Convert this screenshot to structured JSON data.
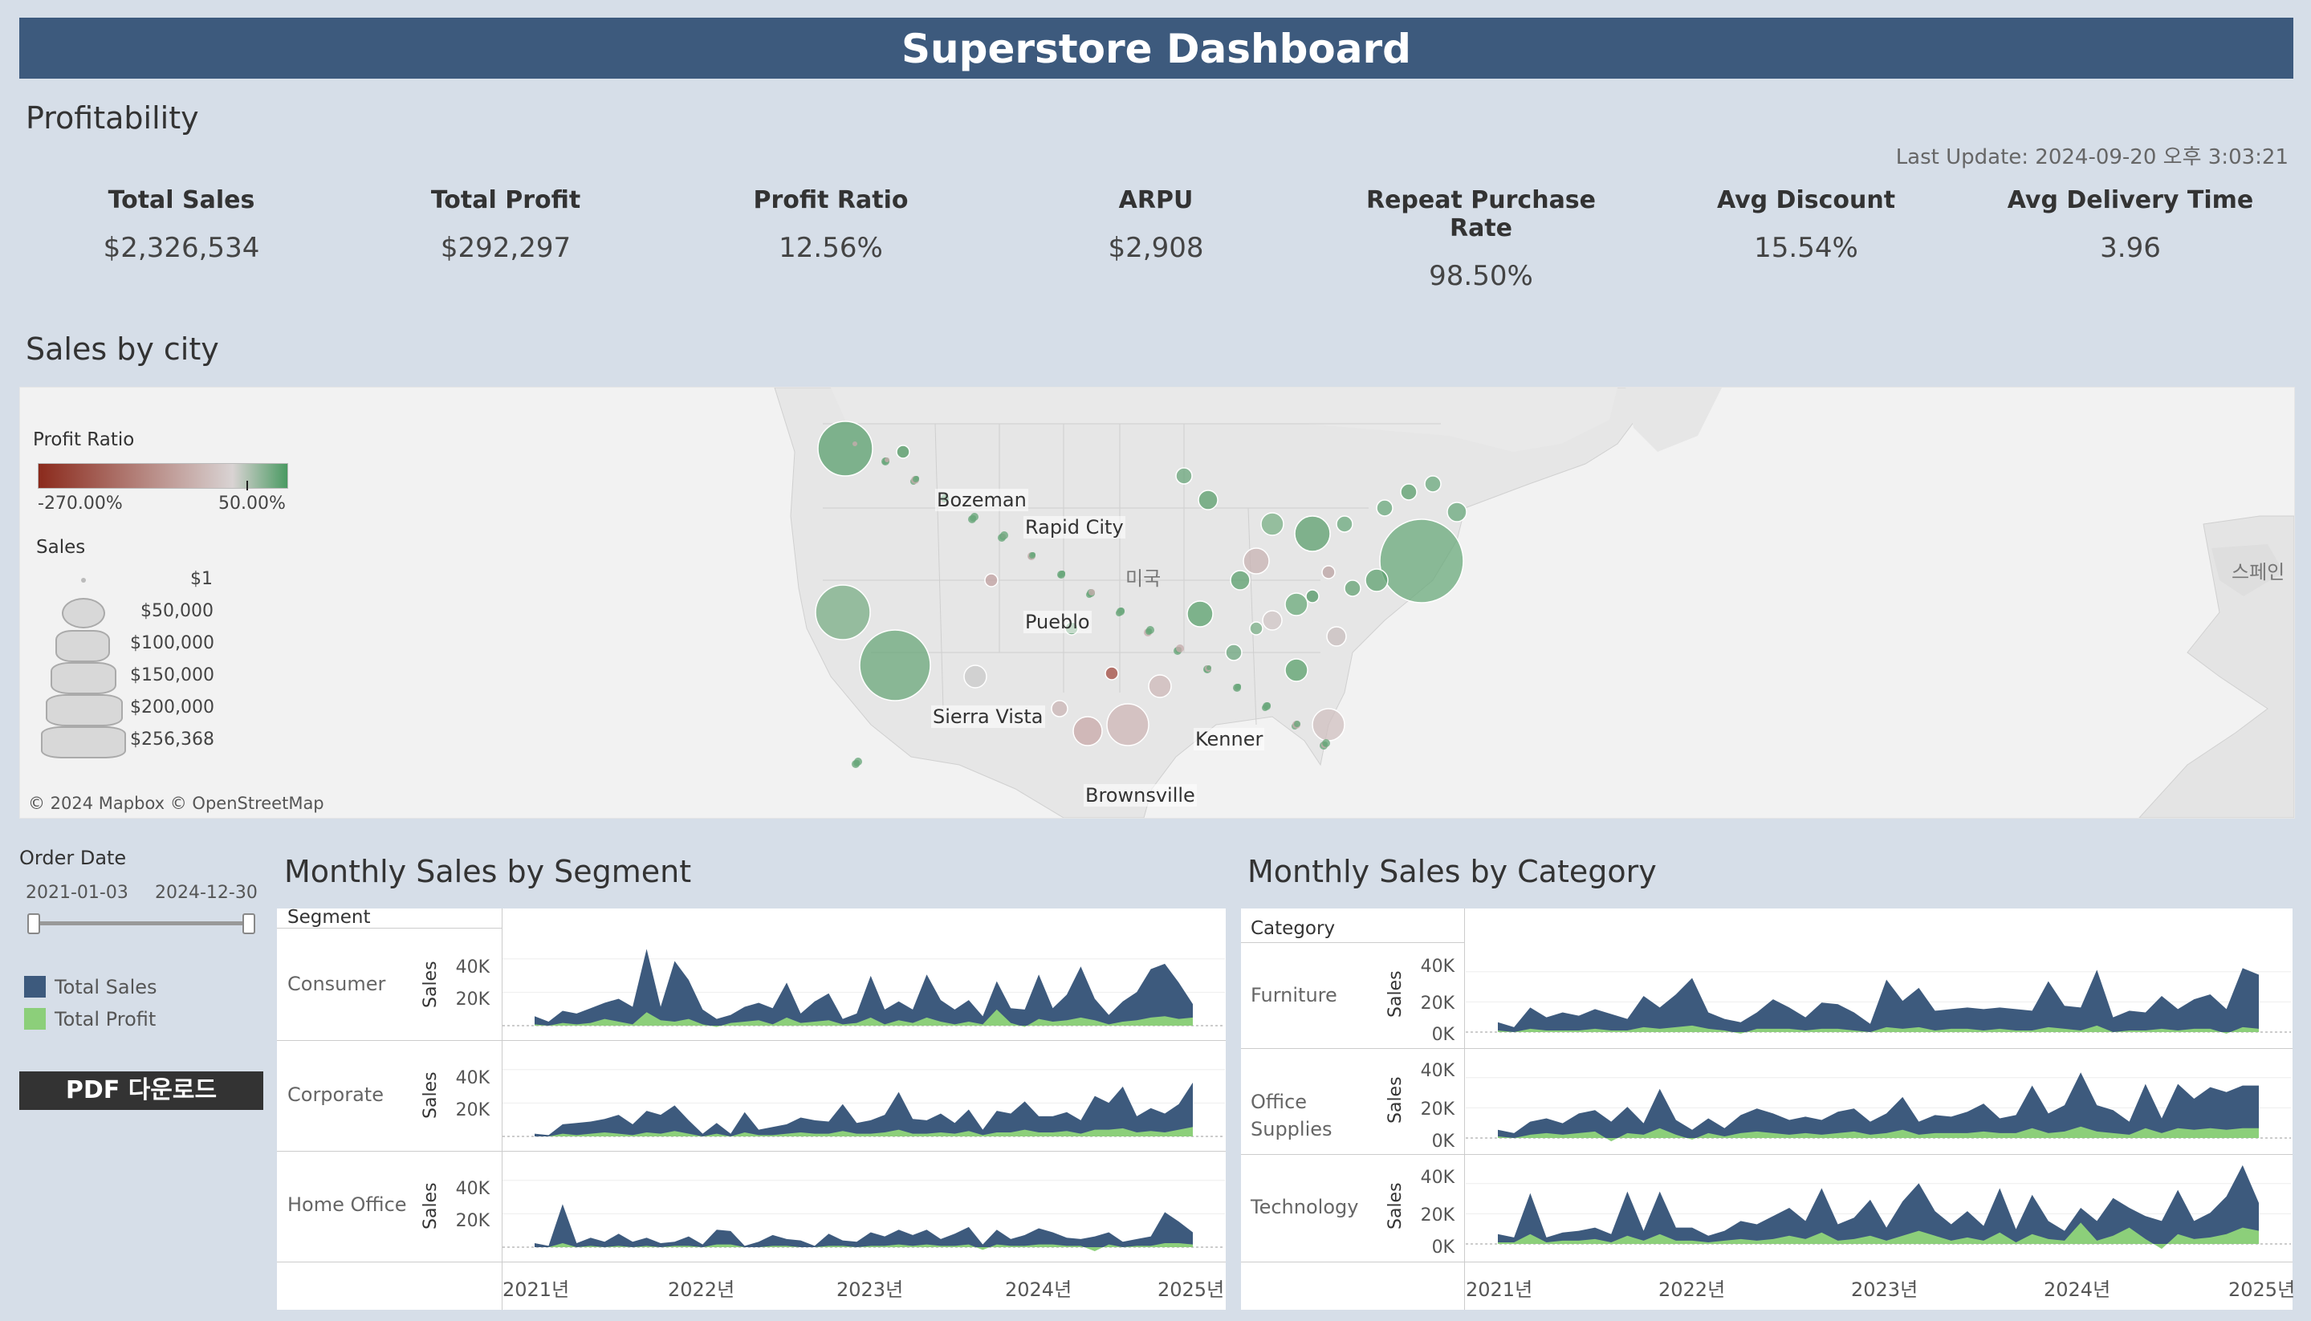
{
  "header": {
    "title": "Superstore Dashboard"
  },
  "profitability": {
    "title": "Profitability",
    "last_update": "Last Update: 2024-09-20 오후 3:03:21",
    "kpis": [
      {
        "label": "Total Sales",
        "value": "$2,326,534"
      },
      {
        "label": "Total Profit",
        "value": "$292,297"
      },
      {
        "label": "Profit Ratio",
        "value": "12.56%"
      },
      {
        "label": "ARPU",
        "value": "$2,908"
      },
      {
        "label": "Repeat Purchase Rate",
        "value": "98.50%"
      },
      {
        "label": "Avg Discount",
        "value": "15.54%"
      },
      {
        "label": "Avg Delivery Time",
        "value": "3.96"
      }
    ]
  },
  "map": {
    "title": "Sales by city",
    "credit": "© 2024 Mapbox © OpenStreetMap",
    "country_label": "미국",
    "spain_label": "스페인",
    "city_labels": [
      "Bozeman",
      "Rapid City",
      "Pueblo",
      "Sierra Vista",
      "Kenner",
      "Brownsville"
    ],
    "profit_legend": {
      "title": "Profit Ratio",
      "min_label": "-270.00%",
      "max_label": "50.00%",
      "neg_color": "#8b2a1c",
      "mid_color": "#d9d3d3",
      "pos_color": "#4a9a62"
    },
    "sales_legend": {
      "title": "Sales",
      "items": [
        "$1",
        "$50,000",
        "$100,000",
        "$150,000",
        "$200,000",
        "$256,368"
      ]
    }
  },
  "filters": {
    "order_date_title": "Order Date",
    "start_date": "2021-01-03",
    "end_date": "2024-12-30",
    "legend": [
      {
        "label": "Total Sales",
        "color": "#3d5a7d"
      },
      {
        "label": "Total Profit",
        "color": "#8ccf7a"
      }
    ],
    "pdf_button": "PDF 다운로드"
  },
  "segment_chart": {
    "title": "Monthly Sales by Segment",
    "header_label": "Segment",
    "axis_title": "Sales",
    "x_ticks": [
      "2021년",
      "2022년",
      "2023년",
      "2024년",
      "2025년"
    ],
    "y_ticks": [
      "40K",
      "20K"
    ],
    "rows": [
      "Consumer",
      "Corporate",
      "Home Office"
    ]
  },
  "category_chart": {
    "title": "Monthly Sales by Category",
    "header_label": "Category",
    "axis_title": "Sales",
    "x_ticks": [
      "2021년",
      "2022년",
      "2023년",
      "2024년",
      "2025년"
    ],
    "y_ticks": [
      "40K",
      "20K",
      "0K"
    ],
    "rows": [
      "Furniture",
      "Office Supplies",
      "Technology"
    ]
  },
  "chart_data": [
    {
      "type": "area",
      "title": "Monthly Sales by Segment",
      "ylabel": "Sales",
      "x_range": [
        "2021-01",
        "2024-12"
      ],
      "ylim": [
        0,
        50000
      ],
      "panels": [
        {
          "name": "Consumer",
          "series": [
            {
              "name": "Total Sales",
              "values": [
                7000,
                3000,
                11000,
                9000,
                13000,
                17000,
                20000,
                14000,
                57000,
                14000,
                48000,
                34000,
                12000,
                5000,
                8000,
                14000,
                17000,
                13000,
                32000,
                9000,
                18000,
                24000,
                5000,
                9000,
                37000,
                12000,
                18000,
                12000,
                38000,
                19000,
                12000,
                19000,
                7000,
                33000,
                13000,
                12000,
                38000,
                13000,
                23000,
                44000,
                20000,
                8000,
                18000,
                25000,
                42000,
                46000,
                32000,
                16000
              ]
            },
            {
              "name": "Total Profit",
              "values": [
                1000,
                0,
                2000,
                1000,
                2000,
                5000,
                3000,
                1000,
                10000,
                4000,
                3000,
                5000,
                1000,
                -1000,
                2000,
                3000,
                4000,
                1000,
                6000,
                2000,
                3000,
                4000,
                1000,
                2000,
                6000,
                1000,
                4000,
                2000,
                6000,
                3000,
                1000,
                3000,
                1000,
                12000,
                2000,
                -1000,
                5000,
                3000,
                4000,
                6000,
                4000,
                1000,
                3000,
                4000,
                6000,
                7000,
                5000,
                6000
              ]
            }
          ]
        },
        {
          "name": "Corporate",
          "series": [
            {
              "name": "Total Sales",
              "values": [
                2000,
                1000,
                9000,
                10000,
                11000,
                13000,
                16000,
                9000,
                19000,
                16000,
                23000,
                12000,
                2000,
                10000,
                2000,
                18000,
                5000,
                7000,
                9000,
                14000,
                12000,
                11000,
                24000,
                10000,
                12000,
                16000,
                33000,
                13000,
                12000,
                17000,
                10000,
                20000,
                5000,
                19000,
                17000,
                26000,
                15000,
                15000,
                18000,
                12000,
                30000,
                25000,
                37000,
                15000,
                21000,
                17000,
                24000,
                40000
              ]
            },
            {
              "name": "Total Profit",
              "values": [
                0,
                0,
                2000,
                1000,
                2000,
                3000,
                2000,
                1000,
                3000,
                2000,
                4000,
                2000,
                0,
                2000,
                0,
                3000,
                1000,
                1000,
                2000,
                3000,
                2000,
                2000,
                4000,
                2000,
                2000,
                3000,
                5000,
                2000,
                2000,
                3000,
                2000,
                4000,
                1000,
                3000,
                3000,
                5000,
                3000,
                3000,
                4000,
                2000,
                5000,
                5000,
                6000,
                3000,
                4000,
                3000,
                5000,
                7000
              ]
            }
          ]
        },
        {
          "name": "Home Office",
          "series": [
            {
              "name": "Total Sales",
              "values": [
                3000,
                1000,
                32000,
                3000,
                7000,
                4000,
                10000,
                4000,
                7000,
                3000,
                4000,
                8000,
                2000,
                13000,
                12000,
                1000,
                4000,
                9000,
                6000,
                5000,
                1000,
                10000,
                5000,
                4000,
                11000,
                8000,
                13000,
                9000,
                13000,
                6000,
                10000,
                15000,
                2000,
                13000,
                6000,
                9000,
                14000,
                11000,
                7000,
                6000,
                8000,
                11000,
                4000,
                6000,
                8000,
                26000,
                19000,
                11000
              ]
            },
            {
              "name": "Total Profit",
              "values": [
                0,
                0,
                3000,
                0,
                1000,
                0,
                1000,
                0,
                1000,
                0,
                1000,
                1000,
                0,
                2000,
                2000,
                0,
                0,
                1000,
                1000,
                0,
                0,
                1000,
                1000,
                0,
                1000,
                1000,
                2000,
                1000,
                2000,
                1000,
                1000,
                2000,
                -2000,
                2000,
                1000,
                1000,
                2000,
                2000,
                1000,
                1000,
                -3000,
                2000,
                0,
                1000,
                1000,
                3000,
                3000,
                2000
              ]
            }
          ]
        }
      ]
    },
    {
      "type": "area",
      "title": "Monthly Sales by Category",
      "ylabel": "Sales",
      "x_range": [
        "2021-01",
        "2024-12"
      ],
      "ylim": [
        0,
        40000
      ],
      "panels": [
        {
          "name": "Furniture",
          "series": [
            {
              "name": "Total Sales",
              "values": [
                6000,
                3000,
                15000,
                9000,
                12000,
                10000,
                14000,
                11000,
                8000,
                22000,
                15000,
                23000,
                33000,
                12000,
                8000,
                6000,
                12000,
                20000,
                15000,
                9000,
                18000,
                17000,
                12000,
                5000,
                32000,
                19000,
                27000,
                13000,
                14000,
                15000,
                14000,
                15000,
                14000,
                13000,
                31000,
                16000,
                15000,
                38000,
                9000,
                13000,
                12000,
                22000,
                14000,
                20000,
                23000,
                14000,
                39000,
                35000
              ]
            },
            {
              "name": "Total Profit",
              "values": [
                1000,
                0,
                2000,
                1000,
                1000,
                1000,
                2000,
                1000,
                1000,
                3000,
                2000,
                3000,
                4000,
                2000,
                1000,
                -1000,
                2000,
                2000,
                2000,
                1000,
                2000,
                2000,
                1000,
                0,
                3000,
                2000,
                3000,
                1000,
                2000,
                2000,
                1000,
                2000,
                1000,
                1000,
                3000,
                2000,
                1000,
                4000,
                0,
                1000,
                1000,
                2000,
                1000,
                2000,
                2000,
                -1000,
                3000,
                2000
              ]
            }
          ]
        },
        {
          "name": "Office Supplies",
          "series": [
            {
              "name": "Total Sales",
              "values": [
                5000,
                3000,
                10000,
                12000,
                9000,
                15000,
                17000,
                10000,
                19000,
                9000,
                30000,
                11000,
                5000,
                12000,
                6000,
                14000,
                18000,
                15000,
                11000,
                13000,
                11000,
                16000,
                18000,
                10000,
                15000,
                25000,
                10000,
                14000,
                13000,
                16000,
                21000,
                12000,
                14000,
                32000,
                15000,
                20000,
                40000,
                20000,
                17000,
                10000,
                33000,
                12000,
                33000,
                24000,
                31000,
                28000,
                32000,
                32000
              ]
            },
            {
              "name": "Total Profit",
              "values": [
                1000,
                0,
                2000,
                3000,
                2000,
                3000,
                4000,
                -2000,
                3000,
                2000,
                6000,
                2000,
                -1000,
                3000,
                1000,
                3000,
                4000,
                3000,
                2000,
                3000,
                2000,
                3000,
                4000,
                2000,
                3000,
                5000,
                2000,
                3000,
                3000,
                3000,
                4000,
                3000,
                3000,
                6000,
                3000,
                4000,
                7000,
                4000,
                3000,
                2000,
                6000,
                3000,
                6000,
                5000,
                6000,
                5000,
                6000,
                6000
              ]
            }
          ]
        },
        {
          "name": "Technology",
          "series": [
            {
              "name": "Total Sales",
              "values": [
                6000,
                4000,
                31000,
                4000,
                7000,
                8000,
                10000,
                6000,
                32000,
                8000,
                32000,
                10000,
                10000,
                5000,
                8000,
                14000,
                12000,
                17000,
                22000,
                14000,
                34000,
                12000,
                16000,
                27000,
                10000,
                26000,
                37000,
                20000,
                12000,
                20000,
                11000,
                34000,
                9000,
                30000,
                14000,
                8000,
                22000,
                14000,
                28000,
                22000,
                17000,
                14000,
                33000,
                14000,
                19000,
                29000,
                48000,
                25000
              ]
            },
            {
              "name": "Total Profit",
              "values": [
                1000,
                1000,
                6000,
                1000,
                2000,
                2000,
                3000,
                1000,
                5000,
                2000,
                6000,
                2000,
                2000,
                1000,
                2000,
                3000,
                2000,
                3000,
                5000,
                3000,
                7000,
                2000,
                3000,
                5000,
                2000,
                5000,
                8000,
                5000,
                2000,
                4000,
                2000,
                7000,
                1000,
                6000,
                3000,
                2000,
                13000,
                2000,
                5000,
                10000,
                3000,
                -3000,
                6000,
                3000,
                4000,
                6000,
                10000,
                8000
              ]
            }
          ]
        }
      ]
    }
  ]
}
